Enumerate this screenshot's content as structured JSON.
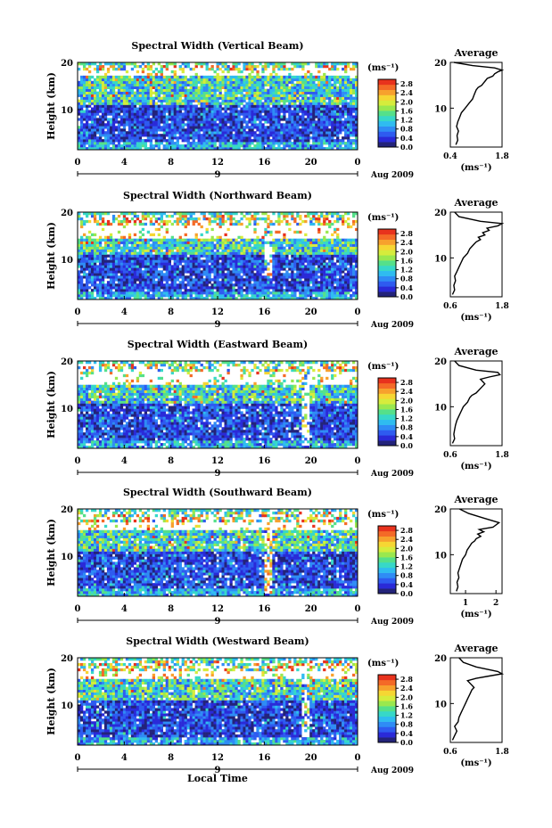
{
  "figure": {
    "xlabel": "Local Time"
  },
  "chart_data": [
    {
      "type": "heatmap",
      "title": "Spectral Width (Vertical Beam)",
      "ylabel": "Height (km)",
      "xticks": [
        "0",
        "4",
        "8",
        "12",
        "16",
        "20",
        "0"
      ],
      "yticks": [
        "10",
        "20"
      ],
      "xlim": [
        0,
        24
      ],
      "ylim": [
        1.5,
        20
      ],
      "date_label": "Aug 2009",
      "day_label": "9",
      "colorbar": {
        "unit": "(ms⁻¹)",
        "ticks": [
          "2.8",
          "2.4",
          "2.0",
          "1.6",
          "1.2",
          "0.8",
          "0.4",
          "0.0"
        ],
        "range": [
          0,
          3.0
        ]
      },
      "features": {
        "band_top": 18.5,
        "band_bottom": 17.0,
        "strip_time": null,
        "strip_from": null
      },
      "average": {
        "title": "Average",
        "xlabel": "(ms⁻¹)",
        "xticks": [
          "0.4",
          "1.8"
        ],
        "xlim": [
          0.4,
          1.8
        ],
        "yticks": [
          "10",
          "20"
        ],
        "ylim": [
          1.5,
          20
        ],
        "x": [
          0.55,
          0.6,
          0.58,
          0.62,
          0.57,
          0.6,
          0.65,
          0.7,
          0.8,
          0.9,
          1.0,
          1.05,
          1.1,
          1.15,
          1.25,
          1.3,
          1.35,
          1.4,
          1.55,
          1.6,
          1.7,
          1.8,
          1.6,
          1.0,
          0.5
        ],
        "y": [
          2,
          3,
          4,
          5,
          6,
          7,
          8,
          9,
          10,
          11,
          12,
          13,
          14,
          14.5,
          15,
          15.5,
          16,
          16.5,
          17,
          17.5,
          18,
          18.3,
          18.8,
          19.3,
          20
        ]
      }
    },
    {
      "type": "heatmap",
      "title": "Spectral Width (Northward Beam)",
      "ylabel": "Height (km)",
      "xticks": [
        "0",
        "4",
        "8",
        "12",
        "16",
        "20",
        "0"
      ],
      "yticks": [
        "10",
        "20"
      ],
      "xlim": [
        0,
        24
      ],
      "ylim": [
        1.5,
        20
      ],
      "date_label": "Aug 2009",
      "day_label": "9",
      "colorbar": {
        "unit": "(ms⁻¹)",
        "ticks": [
          "2.8",
          "2.4",
          "2.0",
          "1.6",
          "1.2",
          "0.8",
          "0.4",
          "0.0"
        ],
        "range": [
          0,
          3.0
        ]
      },
      "features": {
        "band_top": 17.0,
        "band_bottom": 14.5,
        "strip_time": 16.4,
        "strip_from": 6
      },
      "average": {
        "title": "Average",
        "xlabel": "(ms⁻¹)",
        "xticks": [
          "0.6",
          "1.8"
        ],
        "xlim": [
          0.6,
          1.8
        ],
        "yticks": [
          "10",
          "20"
        ],
        "ylim": [
          1.5,
          20
        ],
        "x": [
          0.65,
          0.7,
          0.68,
          0.72,
          0.7,
          0.75,
          0.8,
          0.85,
          0.9,
          1.0,
          1.05,
          1.1,
          1.15,
          1.2,
          1.3,
          1.25,
          1.4,
          1.35,
          1.5,
          1.45,
          1.7,
          1.8,
          1.3,
          0.8,
          0.7
        ],
        "y": [
          2,
          3,
          4,
          5,
          6,
          7,
          8,
          9,
          10,
          11,
          12,
          12.5,
          13,
          13.5,
          14,
          14.5,
          15,
          15.5,
          16,
          16.5,
          17,
          17.5,
          18,
          19,
          20
        ]
      }
    },
    {
      "type": "heatmap",
      "title": "Spectral Width (Eastward Beam)",
      "ylabel": "Height (km)",
      "xticks": [
        "0",
        "4",
        "8",
        "12",
        "16",
        "20",
        "0"
      ],
      "yticks": [
        "10",
        "20"
      ],
      "xlim": [
        0,
        24
      ],
      "ylim": [
        1.5,
        20
      ],
      "date_label": "Aug 2009",
      "day_label": "9",
      "colorbar": {
        "unit": "(ms⁻¹)",
        "ticks": [
          "2.8",
          "2.4",
          "2.0",
          "1.6",
          "1.2",
          "0.8",
          "0.4",
          "0.0"
        ],
        "range": [
          0,
          3.0
        ]
      },
      "features": {
        "band_top": 17.5,
        "band_bottom": 15.0,
        "strip_time": 19.6,
        "strip_from": 2
      },
      "average": {
        "title": "Average",
        "xlabel": "(ms⁻¹)",
        "xticks": [
          "0.6",
          "1.8"
        ],
        "xlim": [
          0.6,
          1.8
        ],
        "yticks": [
          "10",
          "20"
        ],
        "ylim": [
          1.5,
          20
        ],
        "x": [
          0.65,
          0.7,
          0.68,
          0.7,
          0.72,
          0.75,
          0.8,
          0.85,
          0.9,
          1.0,
          1.05,
          1.1,
          1.2,
          1.25,
          1.3,
          1.35,
          1.4,
          1.35,
          1.3,
          1.5,
          1.75,
          1.7,
          1.2,
          0.8,
          0.7
        ],
        "y": [
          2,
          3,
          4,
          5,
          6,
          7,
          8,
          9,
          10,
          11,
          12,
          12.5,
          13,
          13.5,
          14,
          14.5,
          15,
          15.5,
          16,
          16.5,
          17,
          17.5,
          18,
          19,
          20
        ]
      }
    },
    {
      "type": "heatmap",
      "title": "Spectral Width (Southward Beam)",
      "ylabel": "Height (km)",
      "xticks": [
        "0",
        "4",
        "8",
        "12",
        "16",
        "20",
        "0"
      ],
      "yticks": [
        "10",
        "20"
      ],
      "xlim": [
        0,
        24
      ],
      "ylim": [
        1.5,
        20
      ],
      "date_label": "Aug 2009",
      "day_label": "9",
      "colorbar": {
        "unit": "(ms⁻¹)",
        "ticks": [
          "2.8",
          "2.4",
          "2.0",
          "1.6",
          "1.2",
          "0.8",
          "0.4",
          "0.0"
        ],
        "range": [
          0,
          3.0
        ]
      },
      "features": {
        "band_top": 17.2,
        "band_bottom": 15.5,
        "strip_time": 16.4,
        "strip_from": 2
      },
      "average": {
        "title": "Average",
        "xlabel": "(ms⁻¹)",
        "xticks": [
          "1",
          "2"
        ],
        "xlim": [
          0.5,
          2.2
        ],
        "yticks": [
          "10",
          "20"
        ],
        "ylim": [
          1.5,
          20
        ],
        "x": [
          0.7,
          0.75,
          0.72,
          0.78,
          0.75,
          0.8,
          0.85,
          0.9,
          1.0,
          1.05,
          1.15,
          1.2,
          1.3,
          1.35,
          1.5,
          1.4,
          1.6,
          1.45,
          1.9,
          2.1,
          1.6,
          1.1,
          0.8
        ],
        "y": [
          2,
          3,
          4,
          5,
          6,
          7,
          8,
          9,
          10,
          11,
          12,
          12.5,
          13,
          13.5,
          14,
          14.5,
          15,
          15.5,
          16,
          17,
          18,
          19,
          20
        ]
      }
    },
    {
      "type": "heatmap",
      "title": "Spectral Width (Westward Beam)",
      "ylabel": "Height (km)",
      "xticks": [
        "0",
        "4",
        "8",
        "12",
        "16",
        "20",
        "0"
      ],
      "yticks": [
        "10",
        "20"
      ],
      "xlim": [
        0,
        24
      ],
      "ylim": [
        1.5,
        20
      ],
      "date_label": "Aug 2009",
      "day_label": "9",
      "colorbar": {
        "unit": "(ms⁻¹)",
        "ticks": [
          "2.8",
          "2.4",
          "2.0",
          "1.6",
          "1.2",
          "0.8",
          "0.4",
          "0.0"
        ],
        "range": [
          0,
          3.0
        ]
      },
      "features": {
        "band_top": 17.0,
        "band_bottom": 15.5,
        "strip_time": 19.6,
        "strip_from": 3
      },
      "average": {
        "title": "Average",
        "xlabel": "(ms⁻¹)",
        "xticks": [
          "0.6",
          "1.8"
        ],
        "xlim": [
          0.6,
          1.8
        ],
        "yticks": [
          "10",
          "20"
        ],
        "ylim": [
          1.5,
          20
        ],
        "x": [
          0.65,
          0.7,
          0.75,
          0.7,
          0.78,
          0.8,
          0.85,
          0.9,
          0.95,
          1.0,
          1.05,
          1.1,
          1.15,
          1.1,
          1.0,
          1.2,
          1.5,
          1.8,
          1.7,
          1.2,
          0.9,
          0.8
        ],
        "y": [
          2,
          3,
          4,
          5,
          6,
          7,
          8,
          9,
          10,
          11,
          12,
          13,
          13.5,
          14,
          15,
          15.5,
          16,
          16.5,
          17,
          18,
          19,
          20
        ]
      }
    }
  ]
}
